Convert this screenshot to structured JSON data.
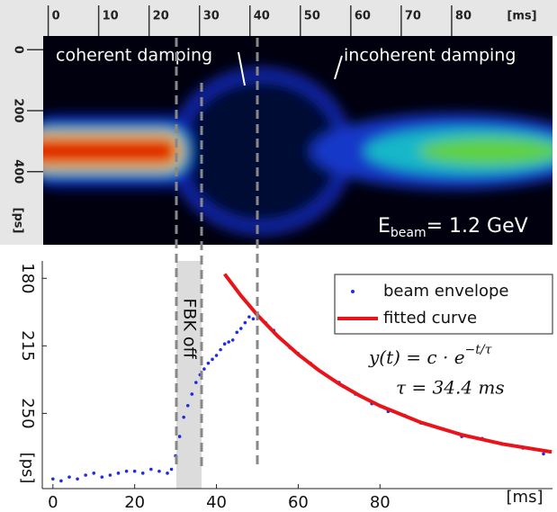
{
  "chart_data": [
    {
      "type": "image",
      "xlim": [
        -1,
        100
      ],
      "xticks": [
        0,
        10,
        20,
        30,
        40,
        50,
        60,
        70,
        80
      ],
      "x_label": "[ms]",
      "ylim": [
        640,
        -45
      ],
      "yticks": [
        0,
        200,
        400
      ],
      "y_label": "[ps]",
      "annotations": [
        "coherent damping",
        "incoherent damping"
      ],
      "energy_label": "E",
      "energy_sub": "beam",
      "energy_value": "= 1.2 GeV"
    },
    {
      "type": "scatter",
      "xlim": [
        -2.6,
        122.2
      ],
      "xticks": [
        0,
        20,
        40,
        60,
        80
      ],
      "x_label": "[ms]",
      "ylim": [
        289,
        171
      ],
      "yticks": [
        180,
        215,
        250
      ],
      "y_label": "[ps]",
      "shade_label": "FBK off",
      "formula": "y(t) = c · e",
      "formula_exp": "−t/τ",
      "tau_label": "τ = 34.4 ms",
      "series": [
        {
          "name": "beam envelope",
          "color": "#1f2de0",
          "x": [
            0,
            2,
            4,
            6,
            8,
            10,
            12,
            14,
            16,
            18,
            20,
            22,
            24,
            26,
            28,
            29,
            30,
            31,
            32,
            33,
            34,
            35,
            36,
            37,
            38,
            39,
            40,
            41,
            42,
            43,
            44,
            45,
            46,
            47,
            48,
            49,
            50,
            52,
            54,
            56,
            58,
            60,
            63,
            66,
            70,
            74,
            78,
            82,
            86,
            90,
            95,
            100,
            105,
            110,
            115,
            120
          ],
          "values": [
            284,
            285,
            283,
            284,
            282,
            281,
            283,
            282,
            281,
            280,
            280,
            281,
            279,
            280,
            281,
            279,
            272,
            262,
            252,
            246,
            240,
            234,
            230,
            227,
            224,
            222,
            220,
            217,
            214,
            213,
            212,
            208,
            206,
            203,
            200,
            201,
            198,
            203,
            207,
            212,
            216,
            219,
            224,
            229,
            234,
            240,
            245,
            249,
            251,
            255,
            258,
            262,
            263,
            266,
            268,
            271
          ]
        },
        {
          "name": "fitted curve",
          "color": "#e8141a",
          "x": [
            42,
            46,
            50,
            55,
            60,
            65,
            70,
            75,
            80,
            90,
            100,
            110,
            122
          ],
          "values": [
            177.8,
            189.0,
            199.0,
            210.0,
            219.4,
            227.6,
            234.7,
            240.8,
            246.1,
            254.7,
            261.1,
            265.9,
            270.0
          ]
        }
      ]
    }
  ]
}
